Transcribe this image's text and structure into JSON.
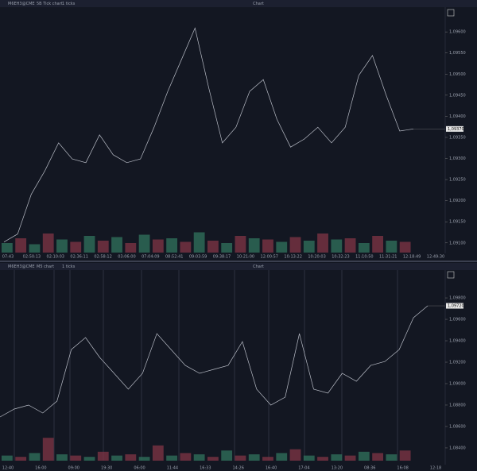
{
  "panels": [
    {
      "symbol": "M6EH3@CME",
      "chart_type": "5B Tick chart",
      "interval": "1 ticks",
      "title": "Chart",
      "price_label": "1,09370",
      "ylim": [
        1.09077,
        1.09653
      ],
      "yticks": [
        {
          "value": 1.096,
          "label": "1,09600"
        },
        {
          "value": 1.0955,
          "label": "1,09550"
        },
        {
          "value": 1.095,
          "label": "1,09500"
        },
        {
          "value": 1.0945,
          "label": "1,09450"
        },
        {
          "value": 1.094,
          "label": "1,09400"
        },
        {
          "value": 1.0935,
          "label": "1,09350"
        },
        {
          "value": 1.093,
          "label": "1,09300"
        },
        {
          "value": 1.0925,
          "label": "1,09250"
        },
        {
          "value": 1.092,
          "label": "1,09200"
        },
        {
          "value": 1.0915,
          "label": "1,09150"
        },
        {
          "value": 1.091,
          "label": "1,09100"
        }
      ],
      "xlabels": [
        "07:43",
        "02:50:13",
        "02:10:03",
        "02:36:11",
        "02:58:12",
        "03:06:00",
        "07:04:09",
        "08:52:41",
        "09:03:59",
        "09:38:17",
        "10:21:00",
        "12:00:57",
        "10:13:22",
        "10:20:03",
        "10:32:23",
        "11:10:50",
        "11:31:21",
        "12:18:49",
        "12:49:30"
      ],
      "series": {
        "values": [
          1.09102,
          1.09121,
          1.09215,
          1.09271,
          1.09337,
          1.09299,
          1.0929,
          1.09356,
          1.09309,
          1.0929,
          1.09299,
          1.09374,
          1.09459,
          1.09534,
          1.09609,
          1.09468,
          1.09337,
          1.09374,
          1.09459,
          1.09487,
          1.09393,
          1.09327,
          1.09346,
          1.09374,
          1.09337,
          1.09374,
          1.09497,
          1.09544,
          1.0945,
          1.09365,
          1.0937
        ]
      },
      "volume": [
        40,
        60,
        35,
        80,
        55,
        45,
        70,
        50,
        65,
        40,
        75,
        55,
        60,
        45,
        85,
        50,
        40,
        70,
        60,
        55,
        45,
        65,
        50,
        80,
        55,
        60,
        40,
        70,
        50,
        45
      ]
    },
    {
      "symbol": "M6EH3@CME",
      "chart_type": "M5 chart",
      "interval": "1 ticks",
      "title": "Chart",
      "price_label": "1,09720",
      "ylim": [
        1.08281,
        1.10045
      ],
      "yticks": [
        {
          "value": 1.098,
          "label": "1,09800"
        },
        {
          "value": 1.096,
          "label": "1,09600"
        },
        {
          "value": 1.094,
          "label": "1,09400"
        },
        {
          "value": 1.092,
          "label": "1,09200"
        },
        {
          "value": 1.09,
          "label": "1,09000"
        },
        {
          "value": 1.088,
          "label": "1,08800"
        },
        {
          "value": 1.086,
          "label": "1,08600"
        },
        {
          "value": 1.084,
          "label": "1,08400"
        }
      ],
      "xlabels": [
        "12:40",
        "16:00",
        "09:00",
        "19:30",
        "06:00",
        "11:44",
        "16:33",
        "14:26",
        "16:40",
        "17:04",
        "13:20",
        "08:36",
        "16:08",
        "12:18"
      ],
      "series": {
        "values": [
          1.08689,
          1.08763,
          1.088,
          1.08726,
          1.08837,
          1.09318,
          1.0943,
          1.09244,
          1.09096,
          1.08948,
          1.09096,
          1.09467,
          1.09318,
          1.0917,
          1.09096,
          1.09133,
          1.0917,
          1.09392,
          1.08948,
          1.088,
          1.08874,
          1.09467,
          1.08948,
          1.08911,
          1.09096,
          1.09022,
          1.0917,
          1.09207,
          1.09318,
          1.09615,
          1.09726
        ]
      },
      "volume": [
        20,
        15,
        30,
        90,
        25,
        20,
        15,
        35,
        20,
        25,
        15,
        60,
        20,
        30,
        25,
        15,
        40,
        20,
        25,
        15,
        30,
        45,
        20,
        15,
        25,
        20,
        35,
        30,
        25,
        40
      ]
    }
  ]
}
